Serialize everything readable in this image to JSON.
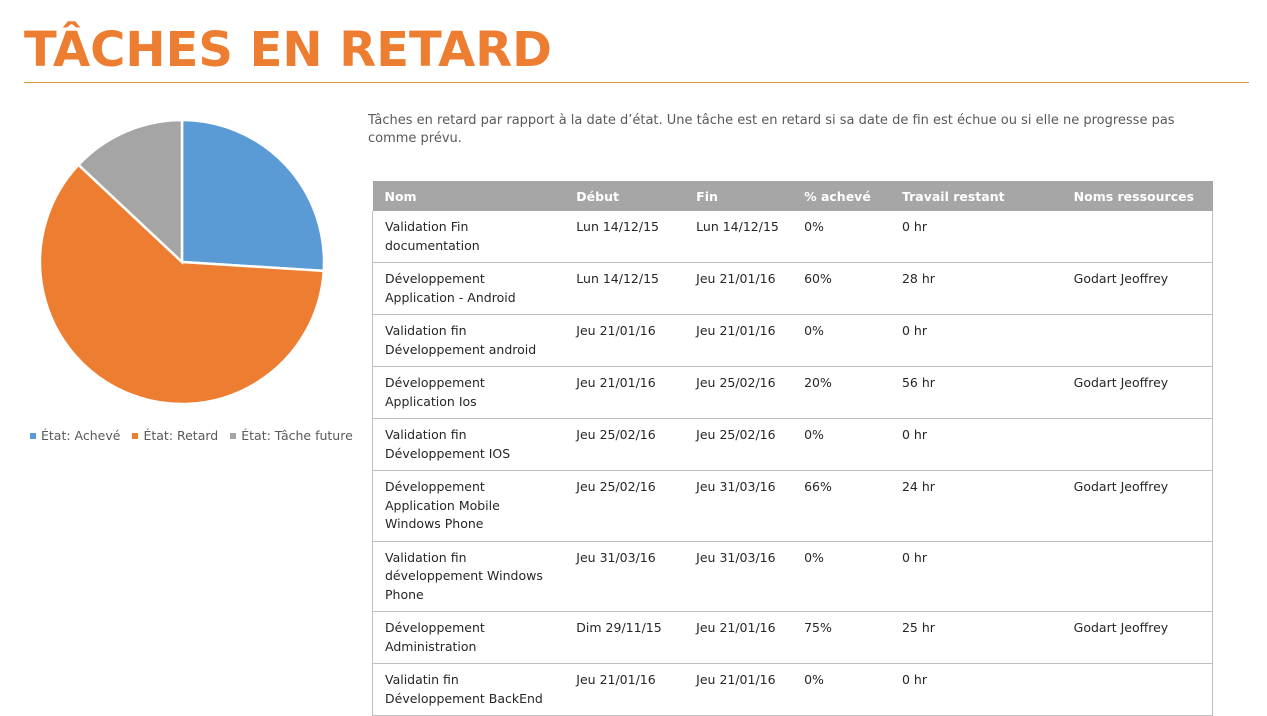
{
  "page": {
    "title": "TÂCHES EN RETARD",
    "description": "Tâches en retard par rapport à la date d’état. Une tâche est en retard si sa date de fin est échue ou si elle ne progresse pas comme prévu."
  },
  "chart_data": {
    "type": "pie",
    "title": "",
    "legend_position": "bottom",
    "slices": [
      {
        "name": "État: Achevé",
        "value": 26,
        "color": "#5b9bd5"
      },
      {
        "name": "État: Retard",
        "value": 61,
        "color": "#ed7d31"
      },
      {
        "name": "État: Tâche future",
        "value": 13,
        "color": "#a5a5a5"
      }
    ]
  },
  "table": {
    "headers": [
      "Nom",
      "Début",
      "Fin",
      "% achevé",
      "Travail restant",
      "Noms ressources"
    ],
    "rows": [
      [
        "Validation Fin documentation",
        "Lun 14/12/15",
        "Lun 14/12/15",
        "0%",
        "0 hr",
        ""
      ],
      [
        "Développement Application - Android",
        "Lun 14/12/15",
        "Jeu 21/01/16",
        "60%",
        "28 hr",
        "Godart Jeoffrey"
      ],
      [
        "Validation fin Développement android",
        "Jeu 21/01/16",
        "Jeu 21/01/16",
        "0%",
        "0 hr",
        ""
      ],
      [
        "Développement Application Ios",
        "Jeu 21/01/16",
        "Jeu 25/02/16",
        "20%",
        "56 hr",
        "Godart Jeoffrey"
      ],
      [
        "Validation fin Développement IOS",
        "Jeu 25/02/16",
        "Jeu 25/02/16",
        "0%",
        "0 hr",
        ""
      ],
      [
        "Développement Application Mobile Windows Phone",
        "Jeu 25/02/16",
        "Jeu 31/03/16",
        "66%",
        "24 hr",
        "Godart Jeoffrey"
      ],
      [
        "Validation fin développement Windows Phone",
        "Jeu 31/03/16",
        "Jeu 31/03/16",
        "0%",
        "0 hr",
        ""
      ],
      [
        "Développement Administration",
        "Dim 29/11/15",
        "Jeu 21/01/16",
        "75%",
        "25 hr",
        "Godart Jeoffrey"
      ],
      [
        "Validatin fin Développement BackEnd",
        "Jeu 21/01/16",
        "Jeu 21/01/16",
        "0%",
        "0 hr",
        ""
      ]
    ]
  }
}
